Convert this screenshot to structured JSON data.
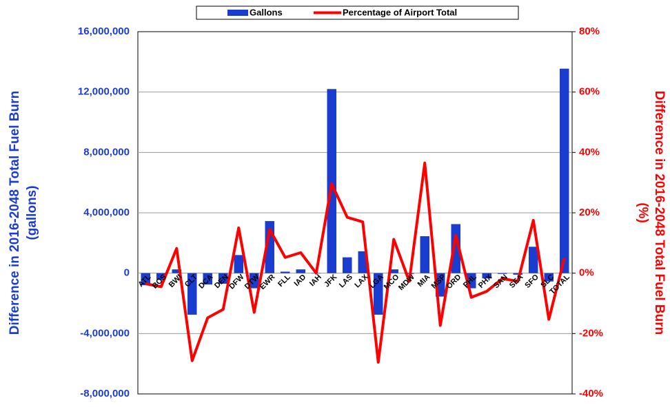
{
  "chart_data": {
    "type": "bar_line",
    "y_label": [
      "Difference in 2016-2048 Total Fuel Burn",
      "(gallons)"
    ],
    "y2_label": [
      "Difference in 2016-2048 Total Fuel Burn",
      "(%)"
    ],
    "categories": [
      "ATL",
      "BOS",
      "BWI",
      "CLT",
      "DCA",
      "DEN",
      "DFW",
      "DTW",
      "EWR",
      "FLL",
      "IAD",
      "IAH",
      "JFK",
      "LAS",
      "LAX",
      "LGA",
      "MCO",
      "MDW",
      "MIA",
      "MSP",
      "ORD",
      "PHL",
      "PHX",
      "SAN",
      "SEA",
      "SFO",
      "SLC",
      "TOTAL"
    ],
    "series": [
      {
        "name": "Gallons",
        "color": "#1a3ccf",
        "type": "bar",
        "values": [
          -800000,
          -450000,
          250000,
          -2750000,
          -750000,
          -700000,
          1200000,
          -1000000,
          3450000,
          100000,
          250000,
          0,
          12200000,
          1050000,
          1450000,
          -2750000,
          250000,
          -50000,
          2450000,
          -1550000,
          3250000,
          -1000000,
          -350000,
          -50000,
          -100000,
          1750000,
          -550000,
          13550000
        ]
      },
      {
        "name": "Percentage of Airport Total",
        "color": "#ff0000",
        "type": "line",
        "axis": "y2",
        "values": [
          -3.5,
          -4.5,
          8.2,
          -29,
          -14.8,
          -12,
          15,
          -13,
          14.5,
          5.2,
          6.8,
          0,
          29.6,
          18.5,
          17,
          -29.5,
          11.2,
          -2.7,
          36.5,
          -17.3,
          12.5,
          -8,
          -6,
          -1.8,
          -2.7,
          17.5,
          -15.3,
          5
        ]
      }
    ],
    "ylim": [
      -8000000,
      16000000
    ],
    "yticks": [
      {
        "value": -8000000,
        "label": "-8,000,000"
      },
      {
        "value": -4000000,
        "label": "-4,000,000"
      },
      0,
      {
        "value": 4000000,
        "label": "4,000,000"
      },
      {
        "value": 8000000,
        "label": "8,000,000"
      },
      {
        "value": 12000000,
        "label": "12,000,000"
      },
      {
        "value": 16000000,
        "label": "16,000,000"
      }
    ],
    "y2lim": [
      -40,
      80
    ],
    "y2ticks": [
      {
        "value": -40,
        "label": "-40%"
      },
      {
        "value": -20,
        "label": "-20%"
      },
      {
        "value": 0,
        "label": "0%"
      },
      {
        "value": 20,
        "label": "20%"
      },
      {
        "value": 40,
        "label": "40%"
      },
      {
        "value": 60,
        "label": "60%"
      },
      {
        "value": 80,
        "label": "80%"
      }
    ],
    "grid": true,
    "legend": "top"
  }
}
